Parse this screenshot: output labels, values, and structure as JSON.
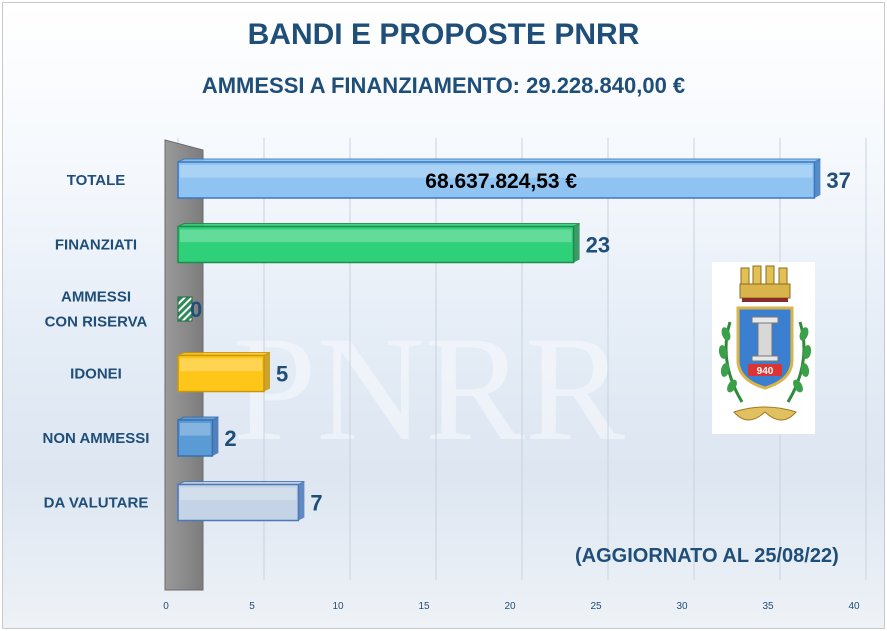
{
  "title": "BANDI E PROPOSTE PNRR",
  "subtitle": "AMMESSI  A FINANZIAMENTO:  29.228.840,00 €",
  "note": "(AGGIORNATO  AL 25/08/22)",
  "watermark": "PNRR",
  "chart_data": {
    "type": "bar",
    "orientation": "horizontal",
    "categories": [
      "TOTALE",
      "FINANZIATI",
      "AMMESSI\nCON RISERVA",
      "IDONEI",
      "NON AMMESSI",
      "DA VALUTARE"
    ],
    "values": [
      37,
      23,
      0,
      5,
      2,
      7
    ],
    "inner_label": {
      "category": "TOTALE",
      "text": "68.637.824,53 €"
    },
    "xlim": [
      0,
      40
    ],
    "xticks": [
      0,
      5,
      10,
      15,
      20,
      25,
      30,
      35,
      40
    ],
    "grid": true,
    "colors": [
      "#8ec3f2",
      "#2fd07a",
      "#2e8b57",
      "#ffc61a",
      "#5b9bd5",
      "#c5d3e6"
    ],
    "edge_colors": [
      "#3a78c0",
      "#1e8a4c",
      "#1e6b40",
      "#c8960c",
      "#3a6fb0",
      "#4a78b8"
    ]
  },
  "emblem": {
    "motto": "940"
  }
}
